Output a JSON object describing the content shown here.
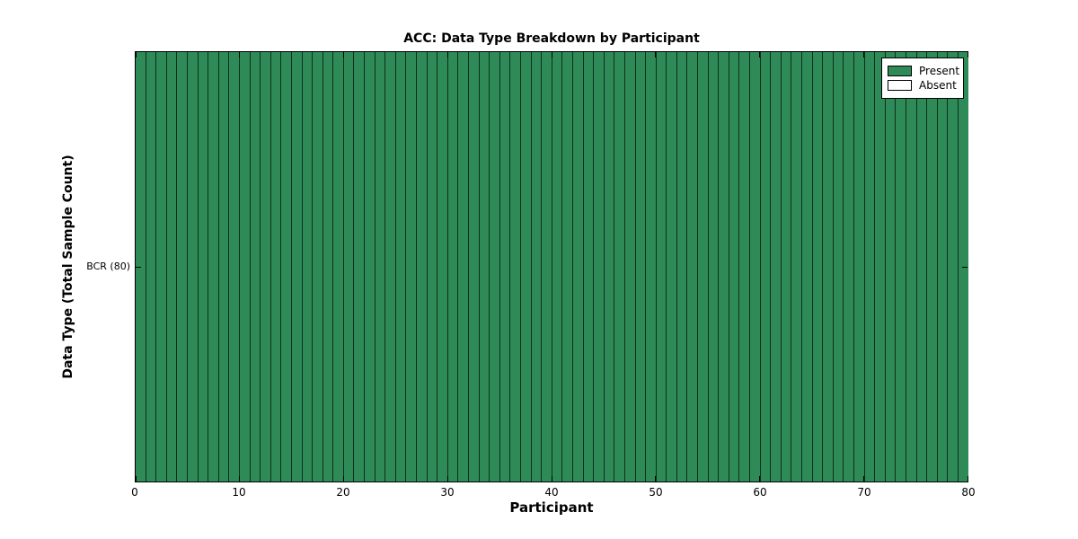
{
  "chart_data": {
    "type": "heatmap",
    "title": "ACC: Data Type Breakdown by Participant",
    "xlabel": "Participant",
    "ylabel": "Data Type (Total Sample Count)",
    "x_range": [
      0,
      80
    ],
    "xticks": [
      0,
      10,
      20,
      30,
      40,
      50,
      60,
      70,
      80
    ],
    "rows": [
      {
        "label": "BCR (80)",
        "present_count": 80,
        "absent_count": 0,
        "presence": [
          1,
          1,
          1,
          1,
          1,
          1,
          1,
          1,
          1,
          1,
          1,
          1,
          1,
          1,
          1,
          1,
          1,
          1,
          1,
          1,
          1,
          1,
          1,
          1,
          1,
          1,
          1,
          1,
          1,
          1,
          1,
          1,
          1,
          1,
          1,
          1,
          1,
          1,
          1,
          1,
          1,
          1,
          1,
          1,
          1,
          1,
          1,
          1,
          1,
          1,
          1,
          1,
          1,
          1,
          1,
          1,
          1,
          1,
          1,
          1,
          1,
          1,
          1,
          1,
          1,
          1,
          1,
          1,
          1,
          1,
          1,
          1,
          1,
          1,
          1,
          1,
          1,
          1,
          1,
          1
        ]
      }
    ],
    "legend": [
      {
        "label": "Present",
        "color": "#2E8B57"
      },
      {
        "label": "Absent",
        "color": "#FFFFFF"
      }
    ],
    "colors": {
      "present": "#2E8B57",
      "absent": "#FFFFFF",
      "cell_edge": "#0d2f1d",
      "axis": "#000000"
    },
    "grid": false,
    "legend_position": "upper right"
  }
}
